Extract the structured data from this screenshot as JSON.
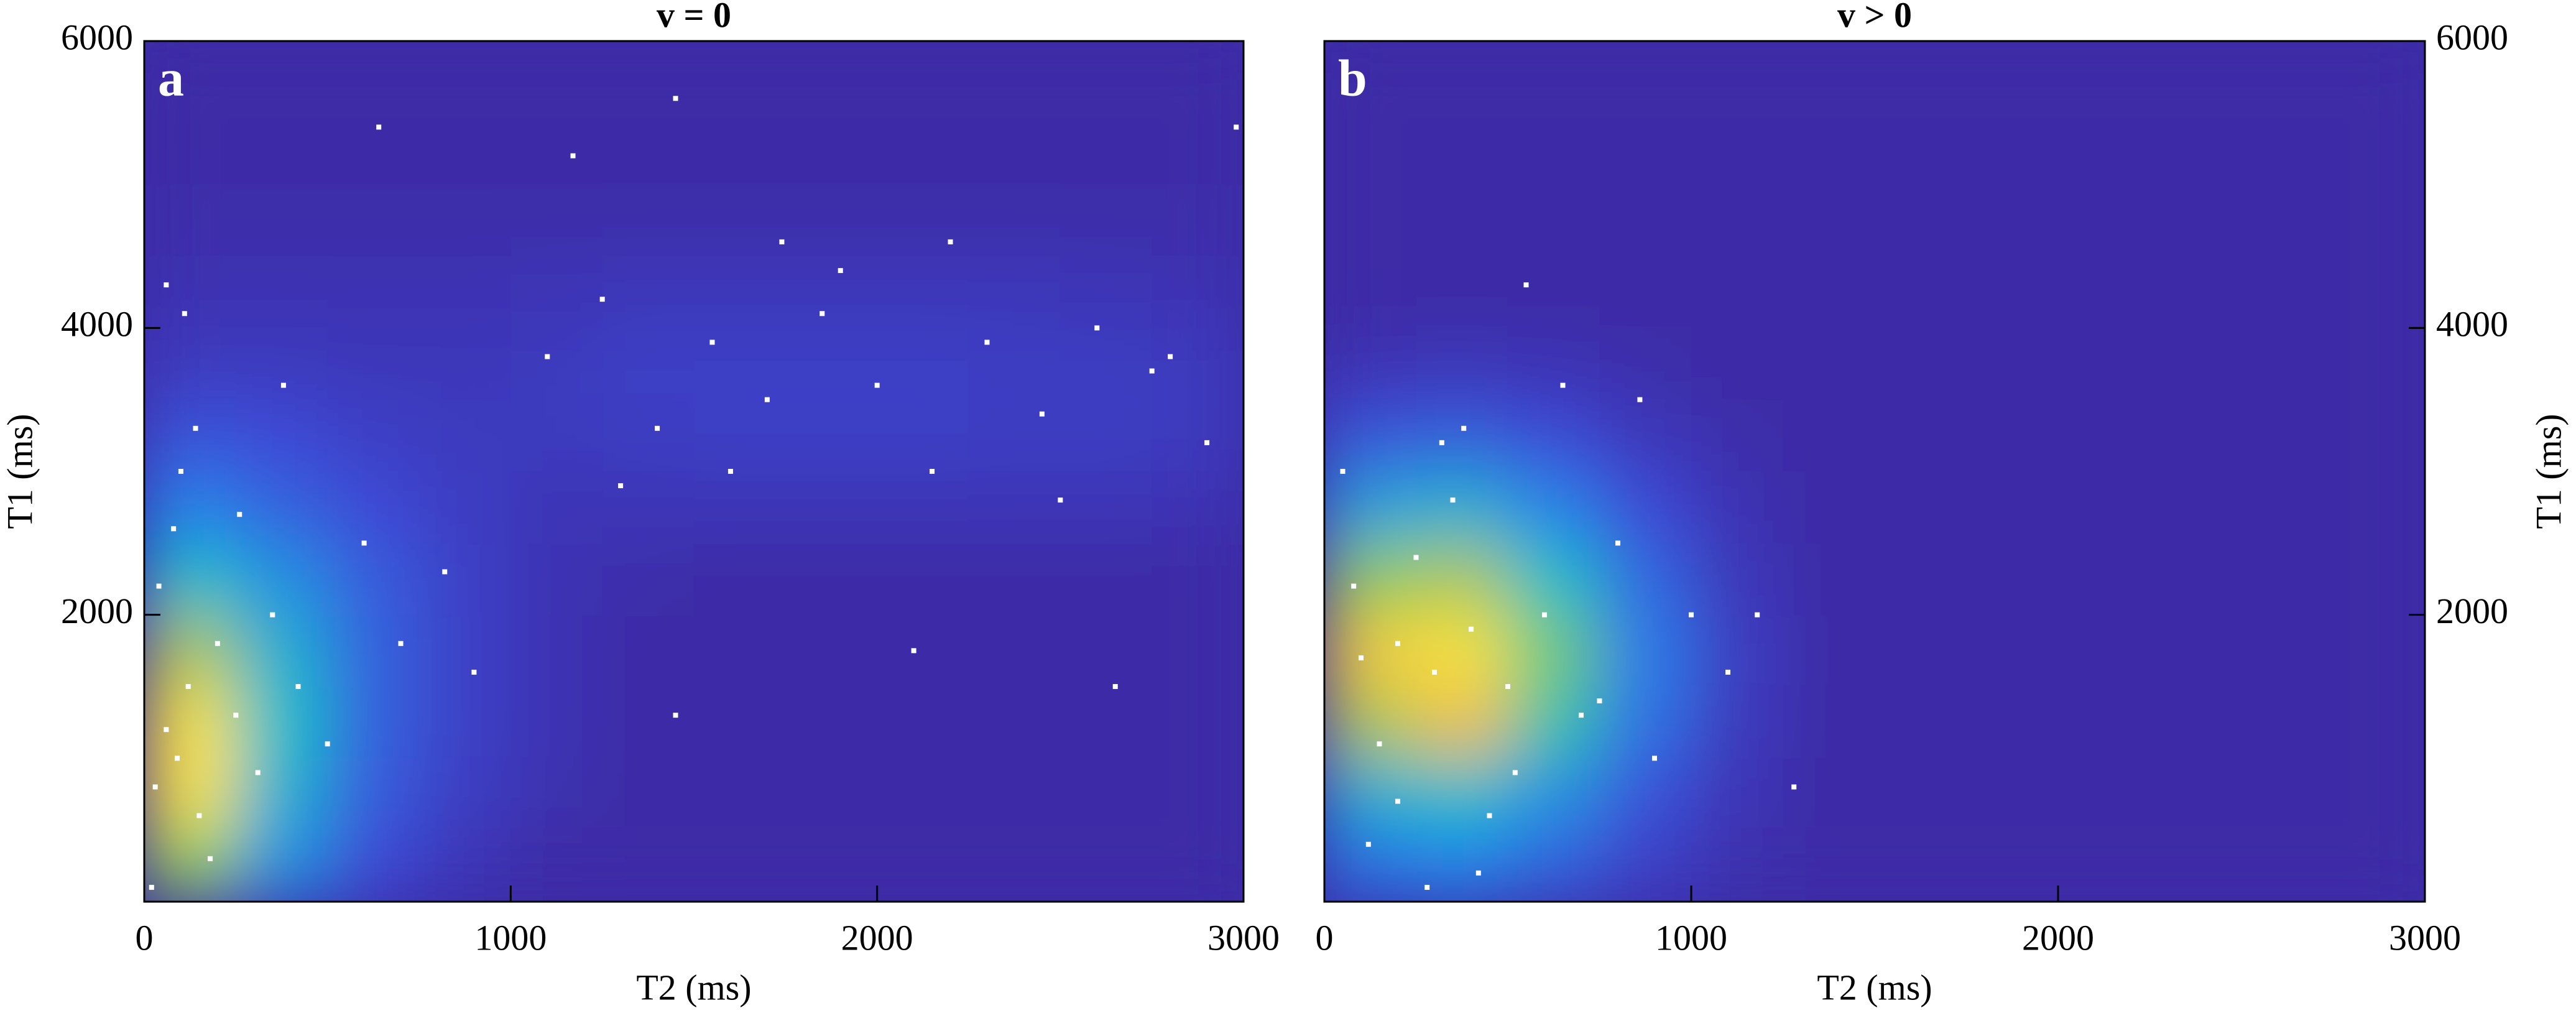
{
  "chart_data": [
    {
      "type": "scatter",
      "title": "v = 0",
      "panel_label": "a",
      "xlabel": "T2 (ms)",
      "ylabel": "T1 (ms)",
      "xlim": [
        0,
        3000
      ],
      "ylim": [
        0,
        6000
      ],
      "xticks": [
        0,
        1000,
        2000,
        3000
      ],
      "yticks": [
        2000,
        4000,
        6000
      ],
      "y_axis_side": "left",
      "point_color": "#ffffff",
      "density": {
        "x_bins": [
          0,
          250,
          500,
          750,
          1000,
          1250,
          1500,
          1750,
          2000,
          2250,
          2500,
          2750,
          3000
        ],
        "y_bins": [
          0,
          500,
          1000,
          1500,
          2000,
          2500,
          3000,
          3500,
          4000,
          4500,
          5000,
          5500,
          6000
        ],
        "values": [
          [
            0.7,
            0.35,
            0.12,
            0.04,
            0,
            0,
            0,
            0,
            0,
            0,
            0,
            0
          ],
          [
            1.0,
            0.45,
            0.18,
            0.07,
            0.02,
            0,
            0,
            0,
            0,
            0,
            0,
            0
          ],
          [
            1.0,
            0.5,
            0.2,
            0.08,
            0.03,
            0,
            0,
            0,
            0,
            0,
            0,
            0
          ],
          [
            0.75,
            0.45,
            0.2,
            0.08,
            0.03,
            0,
            0,
            0,
            0,
            0,
            0,
            0
          ],
          [
            0.5,
            0.35,
            0.18,
            0.08,
            0.03,
            0.01,
            0,
            0,
            0,
            0,
            0,
            0
          ],
          [
            0.3,
            0.2,
            0.12,
            0.07,
            0.04,
            0.04,
            0.04,
            0.04,
            0.04,
            0.04,
            0.04,
            0.03
          ],
          [
            0.15,
            0.12,
            0.08,
            0.06,
            0.06,
            0.07,
            0.08,
            0.08,
            0.08,
            0.07,
            0.07,
            0.06
          ],
          [
            0.06,
            0.06,
            0.05,
            0.05,
            0.06,
            0.08,
            0.08,
            0.08,
            0.08,
            0.07,
            0.07,
            0.06
          ],
          [
            0.03,
            0.03,
            0.03,
            0.03,
            0.04,
            0.05,
            0.05,
            0.05,
            0.05,
            0.05,
            0.04,
            0.03
          ],
          [
            0.01,
            0.01,
            0.01,
            0.01,
            0.01,
            0.01,
            0.01,
            0.01,
            0.01,
            0.01,
            0.01,
            0.01
          ],
          [
            0,
            0,
            0,
            0,
            0,
            0,
            0,
            0,
            0,
            0,
            0,
            0
          ],
          [
            0,
            0,
            0,
            0,
            0,
            0,
            0,
            0,
            0,
            0,
            0,
            0
          ]
        ]
      },
      "x": [
        30,
        60,
        90,
        120,
        150,
        40,
        80,
        200,
        250,
        310,
        180,
        100,
        20,
        350,
        420,
        500,
        600,
        700,
        820,
        900,
        140,
        260,
        380,
        60,
        110,
        1100,
        1250,
        1400,
        1550,
        1700,
        1850,
        2000,
        2150,
        2300,
        2450,
        2600,
        2750,
        2900,
        1300,
        1600,
        1900,
        2200,
        2500,
        2800,
        1450,
        2100,
        2650,
        640,
        1450,
        2980,
        1740,
        1170
      ],
      "y": [
        800,
        1200,
        1000,
        1500,
        600,
        2200,
        2600,
        1800,
        1300,
        900,
        300,
        3000,
        100,
        2000,
        1500,
        1100,
        2500,
        1800,
        2300,
        1600,
        3300,
        2700,
        3600,
        4300,
        4100,
        3800,
        4200,
        3300,
        3900,
        3500,
        4100,
        3600,
        3000,
        3900,
        3400,
        4000,
        3700,
        3200,
        2900,
        3000,
        4400,
        4600,
        2800,
        3800,
        5600,
        1750,
        1500,
        5400,
        1300,
        5400,
        4600,
        5200
      ]
    },
    {
      "type": "scatter",
      "title": "v > 0",
      "panel_label": "b",
      "xlabel": "T2 (ms)",
      "ylabel": "T1 (ms)",
      "xlim": [
        0,
        3000
      ],
      "ylim": [
        0,
        6000
      ],
      "xticks": [
        0,
        1000,
        2000,
        3000
      ],
      "yticks": [
        2000,
        4000,
        6000
      ],
      "y_axis_side": "right",
      "point_color": "#ffffff",
      "density": {
        "x_bins": [
          0,
          250,
          500,
          750,
          1000,
          1250,
          1500,
          1750,
          2000,
          2250,
          2500,
          2750,
          3000
        ],
        "y_bins": [
          0,
          500,
          1000,
          1500,
          2000,
          2500,
          3000,
          3500,
          4000,
          4500,
          5000,
          5500,
          6000
        ],
        "values": [
          [
            0.25,
            0.3,
            0.2,
            0.08,
            0.02,
            0,
            0,
            0,
            0,
            0,
            0,
            0
          ],
          [
            0.45,
            0.5,
            0.35,
            0.15,
            0.04,
            0,
            0,
            0,
            0,
            0,
            0,
            0
          ],
          [
            0.75,
            0.85,
            0.55,
            0.25,
            0.06,
            0,
            0,
            0,
            0,
            0,
            0,
            0
          ],
          [
            0.9,
            1.0,
            0.65,
            0.28,
            0.07,
            0,
            0,
            0,
            0,
            0,
            0,
            0
          ],
          [
            0.7,
            0.75,
            0.5,
            0.22,
            0.05,
            0,
            0,
            0,
            0,
            0,
            0,
            0
          ],
          [
            0.4,
            0.45,
            0.3,
            0.12,
            0.03,
            0,
            0,
            0,
            0,
            0,
            0,
            0
          ],
          [
            0.15,
            0.18,
            0.12,
            0.05,
            0.01,
            0,
            0,
            0,
            0,
            0,
            0,
            0
          ],
          [
            0.03,
            0.04,
            0.03,
            0.01,
            0,
            0,
            0,
            0,
            0,
            0,
            0,
            0
          ],
          [
            0,
            0,
            0,
            0,
            0,
            0,
            0,
            0,
            0,
            0,
            0,
            0
          ],
          [
            0,
            0,
            0,
            0,
            0,
            0,
            0,
            0,
            0,
            0,
            0,
            0
          ],
          [
            0,
            0,
            0,
            0,
            0,
            0,
            0,
            0,
            0,
            0,
            0,
            0
          ],
          [
            0,
            0,
            0,
            0,
            0,
            0,
            0,
            0,
            0,
            0,
            0,
            0
          ]
        ]
      },
      "x": [
        100,
        200,
        300,
        400,
        500,
        250,
        150,
        350,
        450,
        600,
        700,
        800,
        900,
        50,
        120,
        280,
        380,
        520,
        650,
        750,
        1000,
        1100,
        1280,
        1180,
        550,
        320,
        80,
        200,
        420,
        860
      ],
      "y": [
        1700,
        1800,
        1600,
        1900,
        1500,
        2400,
        1100,
        2800,
        600,
        2000,
        1300,
        2500,
        1000,
        3000,
        400,
        100,
        3300,
        900,
        3600,
        1400,
        2000,
        1600,
        800,
        2000,
        4300,
        3200,
        2200,
        700,
        200,
        3500
      ]
    }
  ]
}
